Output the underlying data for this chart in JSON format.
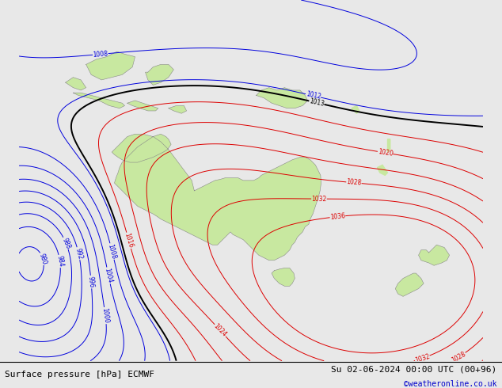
{
  "title_left": "Surface pressure [hPa] ECMWF",
  "title_right": "Su 02-06-2024 00:00 UTC (00+96)",
  "credit": "©weatheronline.co.uk",
  "background_color": "#e8e8e8",
  "land_color": "#c8e8a0",
  "land_outline_color": "#888888",
  "figsize": [
    6.34,
    4.9
  ],
  "dpi": 100,
  "text_color": "#000000",
  "credit_color": "#0000cc",
  "font_size_bottom": 8,
  "font_size_credit": 7,
  "lon_min": 95,
  "lon_max": 185,
  "lat_min": -58,
  "lat_max": 12
}
